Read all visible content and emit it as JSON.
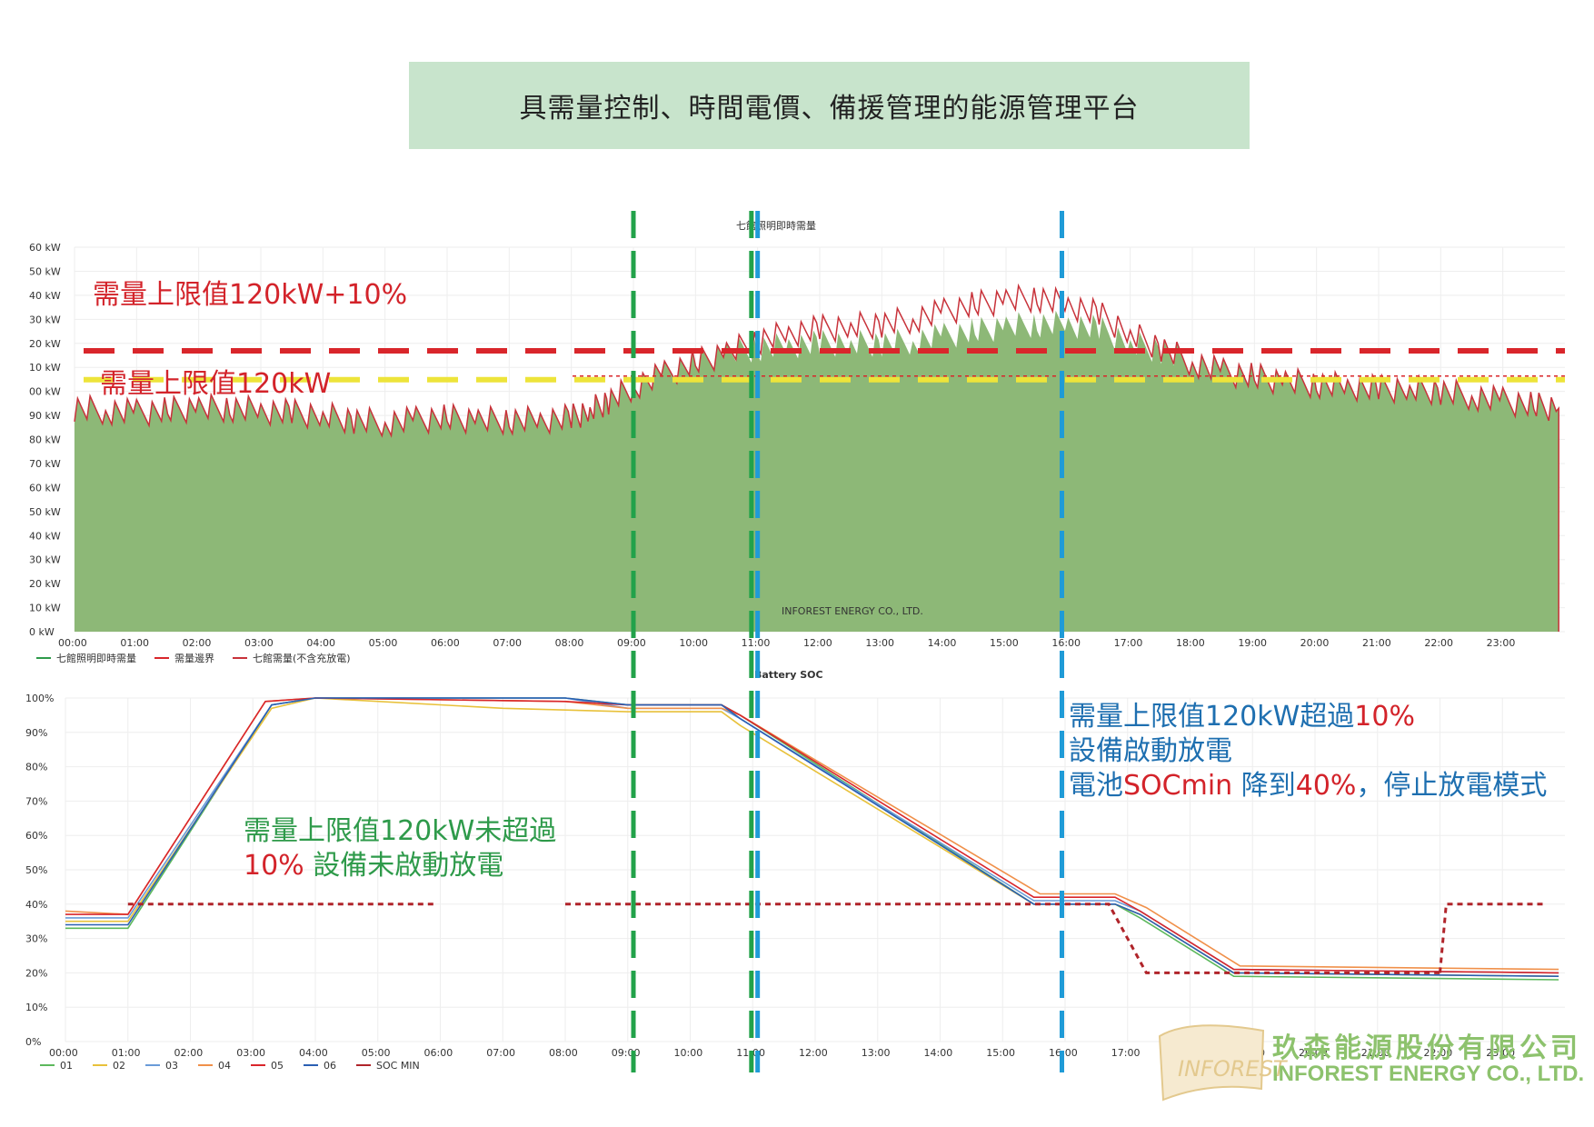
{
  "header": {
    "title": "具需量控制、時間電價、備援管理的能源管理平台"
  },
  "annotations": {
    "upper_limit_10": "需量上限值120kW+10%",
    "upper_limit": "需量上限值120kW",
    "green_line1": "需量上限值120kW未超過",
    "green_line2_red": "10%",
    "green_line2_rest": " 設備未啟動放電",
    "blue_line1_a": "需量上限值120kW超過",
    "blue_line1_b": "10%",
    "blue_line2": "設備啟動放電",
    "blue_line3_a": "電池",
    "blue_line3_b": "SOCmin",
    "blue_line3_c": " 降到",
    "blue_line3_d": "40%",
    "blue_line3_e": "，停止放電模式"
  },
  "logo": {
    "cn": "玖森能源股份有限公司",
    "en": "INFOREST ENERGY CO., LTD.",
    "mark": "INFOREST"
  },
  "colors": {
    "area": "#8db877",
    "line": "#c8323a",
    "limit_red": "#d9262b",
    "limit_yellow": "#ede43a",
    "vline_green": "#22a24a",
    "vline_blue": "#1f9bd7"
  },
  "chart_data": [
    {
      "type": "area",
      "title": "七館照明即時需量",
      "watermark": "INFOREST ENERGY CO., LTD.",
      "y_ticks": [
        "0 kW",
        "10 kW",
        "20 kW",
        "30 kW",
        "40 kW",
        "50 kW",
        "60 kW",
        "70 kW",
        "80 kW",
        "90 kW",
        "00 kW",
        "10 kW",
        "20 kW",
        "30 kW",
        "40 kW",
        "50 kW",
        "60 kW"
      ],
      "ylim": [
        0,
        160
      ],
      "x_ticks": [
        "00:00",
        "01:00",
        "02:00",
        "03:00",
        "04:00",
        "05:00",
        "06:00",
        "07:00",
        "08:00",
        "09:00",
        "10:00",
        "11:00",
        "12:00",
        "13:00",
        "14:00",
        "15:00",
        "16:00",
        "17:00",
        "18:00",
        "19:00",
        "20:00",
        "21:00",
        "22:00",
        "23:00"
      ],
      "xlim": [
        0,
        24
      ],
      "legend": [
        "七館照明即時需量",
        "需量邊界",
        "七館需量(不含充放電)"
      ],
      "legend_colors": [
        "#2e9a4a",
        "#d9262b",
        "#c8323a"
      ],
      "thresholds": {
        "limit_plus_10": 132,
        "limit": 120
      },
      "series": [
        {
          "name": "七館照明即時需量",
          "x": [
            0,
            0.5,
            1,
            1.5,
            2,
            2.5,
            3,
            3.5,
            4,
            4.5,
            5,
            5.5,
            6,
            6.5,
            7,
            7.5,
            8,
            8.3,
            8.6,
            9,
            9.5,
            10,
            10.5,
            11,
            11.5,
            12,
            12.5,
            13,
            13.5,
            14,
            14.5,
            15,
            15.5,
            16,
            16.5,
            17,
            17.5,
            18,
            18.5,
            19,
            19.5,
            20,
            20.5,
            21,
            21.5,
            22,
            22.5,
            23,
            23.5,
            23.9
          ],
          "values": [
            93,
            92,
            91,
            92,
            93,
            93,
            92,
            91,
            90,
            88,
            87,
            88,
            89,
            88,
            88,
            88,
            89,
            92,
            96,
            102,
            107,
            112,
            116,
            118,
            119,
            120,
            120,
            120,
            121,
            123,
            125,
            127,
            128,
            128,
            126,
            120,
            117,
            112,
            108,
            106,
            104,
            103,
            102,
            101,
            101,
            100,
            98,
            96,
            94,
            93
          ]
        },
        {
          "name": "七館需量(不含充放電)",
          "x": [
            0,
            0.5,
            1,
            1.5,
            2,
            2.5,
            3,
            3.5,
            4,
            4.5,
            5,
            5.5,
            6,
            6.5,
            7,
            7.5,
            8,
            8.3,
            8.6,
            9,
            9.5,
            10,
            10.5,
            11,
            11.5,
            12,
            12.5,
            13,
            13.5,
            14,
            14.5,
            15,
            15.5,
            16,
            16.5,
            17,
            17.5,
            18,
            18.5,
            19,
            19.5,
            20,
            20.5,
            21,
            21.5,
            22,
            22.5,
            23,
            23.5,
            23.9
          ],
          "values": [
            93,
            92,
            91,
            92,
            93,
            93,
            92,
            91,
            90,
            88,
            87,
            88,
            89,
            88,
            88,
            88,
            89,
            92,
            96,
            102,
            107,
            112,
            116,
            121,
            124,
            126,
            127,
            128,
            130,
            133,
            136,
            138,
            139,
            136,
            132,
            124,
            118,
            112,
            108,
            106,
            104,
            103,
            102,
            101,
            101,
            100,
            98,
            96,
            94,
            93
          ]
        }
      ]
    },
    {
      "type": "line",
      "title": "Battery SOC",
      "y_ticks": [
        "0%",
        "10%",
        "20%",
        "30%",
        "40%",
        "50%",
        "60%",
        "70%",
        "80%",
        "90%",
        "100%"
      ],
      "ylim": [
        0,
        100
      ],
      "x_ticks": [
        "00:00",
        "01:00",
        "02:00",
        "03:00",
        "04:00",
        "05:00",
        "06:00",
        "07:00",
        "08:00",
        "09:00",
        "10:00",
        "11:00",
        "12:00",
        "13:00",
        "14:00",
        "15:00",
        "16:00",
        "17:00",
        "18:00",
        "19:00",
        "20:00",
        "21:00",
        "22:00",
        "23:00"
      ],
      "xlim": [
        0,
        24
      ],
      "legend": [
        "01",
        "02",
        "03",
        "04",
        "05",
        "06",
        "SOC MIN"
      ],
      "legend_colors": [
        "#5cb85c",
        "#e8c13a",
        "#6a9bd8",
        "#f0904a",
        "#d9262b",
        "#2a5fb3",
        "#b0242a"
      ],
      "series": [
        {
          "name": "01",
          "x": [
            0,
            1,
            3.3,
            4,
            8,
            9,
            10.5,
            10.8,
            15.5,
            16.8,
            17.2,
            18.7,
            23.9
          ],
          "values": [
            33,
            33,
            98,
            100,
            100,
            98,
            98,
            95,
            40,
            40,
            36,
            19,
            18
          ]
        },
        {
          "name": "02",
          "x": [
            0,
            1,
            3.3,
            4,
            7,
            9,
            10.5,
            10.8,
            15.5,
            16.8,
            17.2,
            18.7,
            23.9
          ],
          "values": [
            35,
            35,
            97,
            100,
            97,
            96,
            96,
            92,
            40,
            40,
            37,
            20,
            19
          ]
        },
        {
          "name": "03",
          "x": [
            0,
            1,
            3.3,
            4,
            8,
            9,
            10.5,
            10.8,
            15.5,
            16.8,
            17.2,
            18.7,
            23.9
          ],
          "values": [
            36,
            36,
            98,
            100,
            100,
            97,
            97,
            94,
            41,
            41,
            38,
            21,
            20
          ]
        },
        {
          "name": "04",
          "x": [
            0,
            1,
            3.2,
            4,
            8,
            9,
            10.5,
            10.8,
            15.6,
            16.8,
            17.3,
            18.8,
            23.9
          ],
          "values": [
            38,
            37,
            99,
            100,
            99,
            97,
            97,
            95,
            43,
            43,
            39,
            22,
            21
          ]
        },
        {
          "name": "05",
          "x": [
            0,
            1,
            3.2,
            4,
            8,
            9,
            10.5,
            10.8,
            15.5,
            16.8,
            17.2,
            18.7,
            23.9
          ],
          "values": [
            37,
            37,
            99,
            100,
            99,
            98,
            98,
            95,
            42,
            42,
            38,
            21,
            20
          ]
        },
        {
          "name": "06",
          "x": [
            0,
            1,
            3.3,
            4,
            8,
            9,
            10.5,
            10.8,
            15.5,
            16.8,
            17.2,
            18.7,
            23.9
          ],
          "values": [
            34,
            34,
            98,
            100,
            100,
            98,
            98,
            94,
            40,
            40,
            37,
            20,
            19
          ]
        },
        {
          "name": "SOC MIN",
          "segments": [
            {
              "x": [
                1,
                5.9
              ],
              "values": [
                40,
                40
              ]
            },
            {
              "x": [
                8,
                16.7,
                17.3,
                22
              ],
              "values": [
                40,
                40,
                20,
                20
              ]
            },
            {
              "x": [
                22,
                22.1,
                23.7
              ],
              "values": [
                20,
                40,
                40
              ]
            }
          ]
        }
      ]
    }
  ],
  "markers": {
    "green_lines_hours": [
      9.0,
      10.9
    ],
    "blue_line_hours": [
      11.0,
      15.9
    ]
  }
}
